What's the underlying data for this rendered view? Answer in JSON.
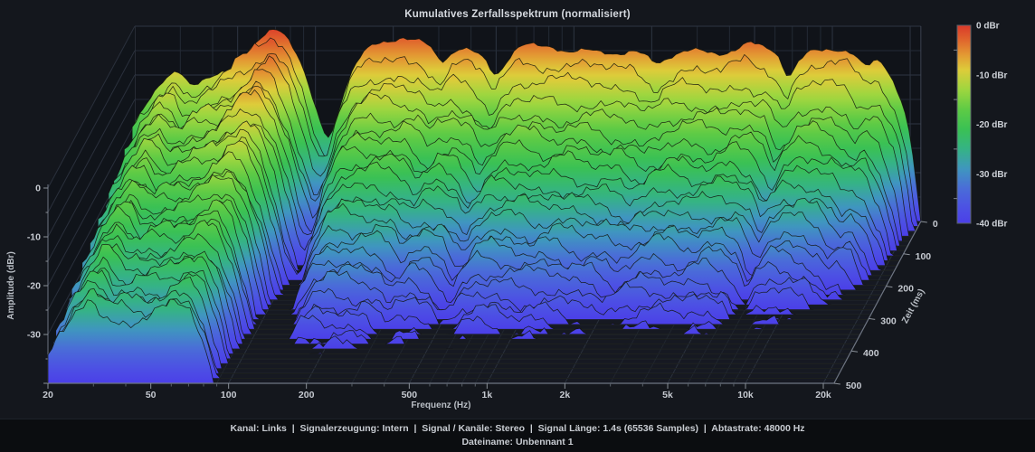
{
  "window": {
    "title": "Kumulatives Zerfallsspektrum (normalisiert)"
  },
  "chart_data": {
    "type": "waterfall-3d-surface",
    "title": "Kumulatives Zerfallsspektrum (normalisiert)",
    "xlabel": "Frequenz (Hz)",
    "ylabel": "Amplitude (dBr)",
    "zlabel": "Zeit (ms)",
    "freq_range_hz": [
      20,
      20000
    ],
    "amp_range_dbr": [
      -40,
      0
    ],
    "time_range_ms": [
      0,
      500
    ],
    "num_time_slices": 34,
    "grid": true,
    "freq_ticks": [
      {
        "f": 20,
        "label": "20"
      },
      {
        "f": 50,
        "label": "50"
      },
      {
        "f": 100,
        "label": "100"
      },
      {
        "f": 200,
        "label": "200"
      },
      {
        "f": 500,
        "label": "500"
      },
      {
        "f": 1000,
        "label": "1k"
      },
      {
        "f": 2000,
        "label": "2k"
      },
      {
        "f": 5000,
        "label": "5k"
      },
      {
        "f": 10000,
        "label": "10k"
      },
      {
        "f": 20000,
        "label": "20k"
      }
    ],
    "freq_minor_ticks": [
      30,
      40,
      60,
      70,
      80,
      90,
      300,
      400,
      600,
      700,
      800,
      900,
      3000,
      4000,
      6000,
      7000,
      8000,
      9000
    ],
    "amp_ticks": [
      {
        "db": 0,
        "label": "0"
      },
      {
        "db": -10,
        "label": "-10"
      },
      {
        "db": -20,
        "label": "-20"
      },
      {
        "db": -30,
        "label": "-30"
      }
    ],
    "time_ticks": [
      {
        "ms": 0,
        "label": "0"
      },
      {
        "ms": 100,
        "label": "100"
      },
      {
        "ms": 200,
        "label": "200"
      },
      {
        "ms": 300,
        "label": "300"
      },
      {
        "ms": 400,
        "label": "400"
      },
      {
        "ms": 500,
        "label": "500"
      }
    ],
    "colorbar": {
      "labels": [
        "0 dBr",
        "-10 dBr",
        "-20 dBr",
        "-30 dBr",
        "-40 dBr"
      ],
      "stops": [
        {
          "dbr": 0,
          "color": "#da392a"
        },
        {
          "dbr": -3,
          "color": "#e0662d"
        },
        {
          "dbr": -6,
          "color": "#e39a33"
        },
        {
          "dbr": -9,
          "color": "#ddcc3a"
        },
        {
          "dbr": -13,
          "color": "#9ed63f"
        },
        {
          "dbr": -17,
          "color": "#5ecb45"
        },
        {
          "dbr": -21,
          "color": "#3ac154"
        },
        {
          "dbr": -25,
          "color": "#35b385"
        },
        {
          "dbr": -29,
          "color": "#3f96bf"
        },
        {
          "dbr": -33,
          "color": "#4a6cd8"
        },
        {
          "dbr": -37,
          "color": "#4c50e4"
        },
        {
          "dbr": -40,
          "color": "#4b3fe8"
        }
      ]
    },
    "surface": {
      "frequencies": [
        20,
        23,
        26,
        30,
        33,
        37,
        41,
        46,
        52,
        58,
        64,
        70,
        76,
        83,
        90,
        98,
        107,
        113,
        120,
        130,
        141,
        152,
        165,
        180,
        200,
        220,
        240,
        262,
        285,
        310,
        335,
        365,
        395,
        430,
        465,
        500,
        535,
        575,
        620,
        680,
        740,
        800,
        880,
        960,
        1050,
        1150,
        1250,
        1400,
        1550,
        1700,
        1900,
        2100,
        2400,
        2700,
        3000,
        3400,
        3800,
        4300,
        4800,
        5400,
        6000,
        6300,
        6800,
        7300,
        8200,
        9000,
        10000,
        11000,
        12200,
        13500,
        15000,
        16500,
        18000,
        19500,
        21000,
        22000
      ],
      "dbr_at_t0": [
        -20,
        -15,
        -11,
        -9,
        -13.5,
        -11,
        -9.5,
        -8.5,
        -6.5,
        -4,
        -1.5,
        0,
        -1.5,
        -5,
        -9,
        -15,
        -21,
        -24,
        -19,
        -12,
        -8,
        -5,
        -3.5,
        -3,
        -3.2,
        -2.8,
        -3.5,
        -3.2,
        -4.5,
        -8,
        -5.5,
        -4.2,
        -4.8,
        -5.5,
        -7,
        -11.5,
        -8.5,
        -6,
        -4.5,
        -4,
        -4.3,
        -4,
        -4.6,
        -5.3,
        -4.6,
        -4.2,
        -4.5,
        -5.2,
        -5.8,
        -5.2,
        -6,
        -8,
        -6,
        -5,
        -4.4,
        -5,
        -5.6,
        -5,
        -3.5,
        -4.6,
        -5.4,
        -6.5,
        -13,
        -7.5,
        -4.8,
        -4.4,
        -4.2,
        -4.8,
        -5.6,
        -9,
        -6.2,
        -9,
        -14,
        -18,
        -30,
        -40
      ],
      "decay_frequencies": [
        20,
        28,
        35,
        45,
        60,
        70,
        85,
        100,
        120,
        150,
        200,
        300,
        500,
        800,
        1200,
        2000,
        3500,
        6000,
        9000,
        12000,
        16000,
        20000,
        22000
      ],
      "early_drop_db": [
        2,
        2,
        2.5,
        3,
        3.5,
        4,
        5,
        6,
        7,
        7,
        7.5,
        7,
        7.5,
        8,
        8,
        8,
        8,
        8,
        8.5,
        9,
        9,
        9,
        9
      ],
      "late_decay_db_at_500ms": [
        13,
        11,
        12,
        15,
        18,
        21,
        27,
        35,
        37,
        36,
        37,
        38,
        38,
        38,
        39,
        40,
        40,
        41,
        44,
        46,
        50,
        52,
        52
      ]
    }
  },
  "status_bar": {
    "line1": "Kanal: Links  |  Signalerzeugung: Intern  |  Signal / Kanäle: Stereo  |  Signal Länge: 1.4s (65536 Samples)  |  Abtastrate: 48000 Hz",
    "line2": "Dateiname: Unbennant 1"
  }
}
